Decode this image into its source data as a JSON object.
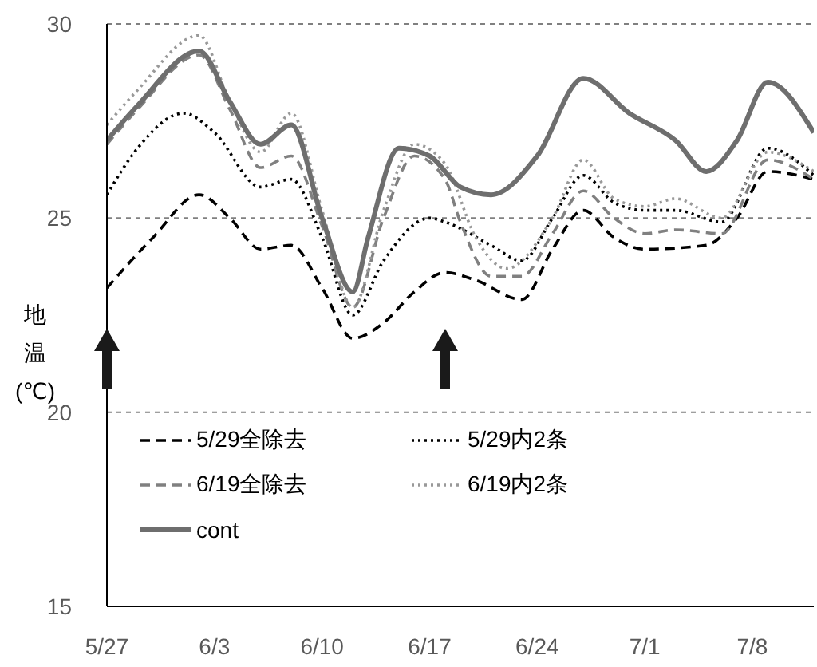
{
  "chart_data": {
    "type": "line",
    "ylabel": "地温(℃)",
    "ylim": [
      15,
      30
    ],
    "yticks": [
      15,
      20,
      25,
      30
    ],
    "xlim": [
      "--05-27",
      "--07-12"
    ],
    "xticks": [
      {
        "value": "--05-27",
        "label": "5/27"
      },
      {
        "value": "--06-03",
        "label": "6/3"
      },
      {
        "value": "--06-10",
        "label": "6/10"
      },
      {
        "value": "--06-17",
        "label": "6/17"
      },
      {
        "value": "--06-24",
        "label": "6/24"
      },
      {
        "value": "--07-01",
        "label": "7/1"
      },
      {
        "value": "--07-08",
        "label": "7/8"
      }
    ],
    "grid": "y",
    "legend": "bottom left",
    "marker": "none",
    "series": [
      {
        "name": "5/29全除去",
        "color": "#000000",
        "line_style": "dashed",
        "x": [
          "--05-27",
          "--05-30",
          "--06-02",
          "--06-04",
          "--06-06",
          "--06-08",
          "--06-10",
          "--06-12",
          "--06-14",
          "--06-16",
          "--06-18",
          "--06-20",
          "--06-23",
          "--06-25",
          "--06-27",
          "--06-29",
          "--07-01",
          "--07-05",
          "--07-07",
          "--07-09",
          "--07-12"
        ],
        "values": [
          23.2,
          24.5,
          25.6,
          25.0,
          24.2,
          24.3,
          23.2,
          21.9,
          22.3,
          23.1,
          23.6,
          23.4,
          22.9,
          24.2,
          25.2,
          24.5,
          24.2,
          24.3,
          25.0,
          26.2,
          26.0
        ]
      },
      {
        "name": "5/29内2条",
        "color": "#000000",
        "line_style": "dotted",
        "x": [
          "--05-27",
          "--05-29",
          "--06-01",
          "--06-03",
          "--06-06",
          "--06-08",
          "--06-10",
          "--06-12",
          "--06-14",
          "--06-17",
          "--06-18",
          "--06-21",
          "--06-23",
          "--06-25",
          "--06-27",
          "--06-29",
          "--07-01",
          "--07-03",
          "--07-06",
          "--07-09",
          "--07-12"
        ],
        "values": [
          25.6,
          26.8,
          27.7,
          27.2,
          25.8,
          26.0,
          24.5,
          22.5,
          23.9,
          25.0,
          24.9,
          24.3,
          23.9,
          25.0,
          26.1,
          25.4,
          25.2,
          25.2,
          24.9,
          26.8,
          26.1
        ]
      },
      {
        "name": "6/19全除去",
        "color": "#808080",
        "line_style": "dashed",
        "x": [
          "--05-27",
          "--05-29",
          "--06-02",
          "--06-04",
          "--06-06",
          "--06-08",
          "--06-10",
          "--06-12",
          "--06-14",
          "--06-16",
          "--06-18",
          "--06-19",
          "--06-21",
          "--06-23",
          "--06-25",
          "--06-27",
          "--06-29",
          "--07-01",
          "--07-03",
          "--07-06",
          "--07-09",
          "--07-12"
        ],
        "values": [
          26.9,
          27.8,
          29.2,
          27.8,
          26.3,
          26.6,
          24.8,
          22.7,
          25.0,
          26.6,
          26.0,
          24.9,
          23.5,
          23.5,
          24.6,
          25.7,
          25.0,
          24.6,
          24.7,
          24.6,
          26.5,
          26.0
        ]
      },
      {
        "name": "6/19内2条",
        "color": "#999999",
        "line_style": "dotted",
        "x": [
          "--05-27",
          "--05-29",
          "--06-02",
          "--06-04",
          "--06-06",
          "--06-08",
          "--06-10",
          "--06-12",
          "--06-14",
          "--06-16",
          "--06-18",
          "--06-20",
          "--06-22",
          "--06-25",
          "--06-27",
          "--06-29",
          "--07-01",
          "--07-03",
          "--07-06",
          "--07-09",
          "--07-12"
        ],
        "values": [
          27.4,
          28.3,
          29.7,
          28.0,
          26.7,
          27.7,
          25.2,
          22.7,
          25.2,
          26.9,
          26.4,
          24.5,
          23.7,
          25.0,
          26.5,
          25.5,
          25.3,
          25.5,
          25.0,
          26.7,
          26.2
        ]
      },
      {
        "name": "cont",
        "color": "#6e6e6e",
        "line_style": "solid",
        "x": [
          "--05-27",
          "--05-29",
          "--06-02",
          "--06-04",
          "--06-06",
          "--06-08",
          "--06-10",
          "--06-12",
          "--06-13",
          "--06-15",
          "--06-17",
          "--06-19",
          "--06-21",
          "--06-24",
          "--06-27",
          "--06-30",
          "--07-03",
          "--07-05",
          "--07-07",
          "--07-09",
          "--07-12"
        ],
        "values": [
          27.0,
          27.9,
          29.3,
          28.0,
          26.9,
          27.4,
          25.0,
          23.1,
          24.5,
          26.8,
          26.6,
          25.8,
          25.6,
          26.6,
          28.6,
          27.7,
          27.0,
          26.2,
          27.0,
          28.5,
          27.2
        ]
      }
    ]
  }
}
